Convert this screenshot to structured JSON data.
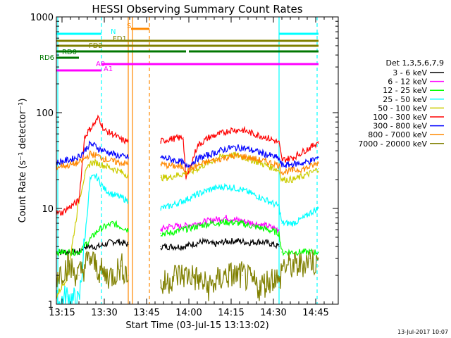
{
  "chart_data": {
    "type": "line",
    "title": "HESSI Observing Summary Count Rates",
    "xlabel": "Start Time (03-Jul-15 13:13:02)",
    "ylabel": "Count Rate (s⁻¹ detector⁻¹)",
    "x_unit": "minutes after 13:13:02",
    "xlim": [
      0,
      100
    ],
    "ylim": [
      1,
      1000
    ],
    "yscale": "log",
    "grid": false,
    "legend_position": "right",
    "legend_title": "Det 1,3,5,6,7,9",
    "x_ticks": [
      {
        "x": 2,
        "label": "13:15"
      },
      {
        "x": 17,
        "label": "13:30"
      },
      {
        "x": 32,
        "label": "13:45"
      },
      {
        "x": 47,
        "label": "14:00"
      },
      {
        "x": 62,
        "label": "14:15"
      },
      {
        "x": 77,
        "label": "14:30"
      },
      {
        "x": 92,
        "label": "14:45"
      }
    ],
    "y_ticks": [
      {
        "y": 1,
        "label": "1"
      },
      {
        "y": 10,
        "label": "10"
      },
      {
        "y": 100,
        "label": "100"
      },
      {
        "y": 1000,
        "label": "1000"
      }
    ],
    "series": [
      {
        "name": "3 - 6 keV",
        "color": "#000000",
        "x": [
          0,
          8,
          10,
          15,
          20,
          22,
          25.5,
          37,
          40,
          45,
          48,
          52,
          56,
          60,
          64,
          68,
          72,
          76,
          79
        ],
        "y": [
          3.5,
          3.5,
          4,
          4,
          4.5,
          4.5,
          4.2,
          4,
          4,
          4,
          4.2,
          4.5,
          4.2,
          4.5,
          4.6,
          4.4,
          4.5,
          4.3,
          4
        ]
      },
      {
        "name": "6 - 12 keV",
        "color": "#ff00ff",
        "x": [
          37,
          40,
          45,
          50,
          55,
          60,
          65,
          70,
          75,
          79
        ],
        "y": [
          6,
          6.5,
          6.5,
          7,
          7.5,
          8,
          7.5,
          7,
          6.5,
          6
        ]
      },
      {
        "name": "12 - 25 keV",
        "color": "#00ff00",
        "x": [
          0,
          8,
          15,
          20,
          25.5,
          37,
          40,
          45,
          50,
          55,
          60,
          65,
          70,
          75,
          79,
          80,
          85,
          90,
          93
        ],
        "y": [
          3.5,
          3.5,
          6,
          7,
          6,
          5.5,
          5.5,
          6,
          6.5,
          7,
          7.2,
          7,
          6.5,
          6,
          5.5,
          3.5,
          3.5,
          3.5,
          3.5
        ]
      },
      {
        "name": "25 - 50 keV",
        "color": "#00ffff",
        "x": [
          0,
          4,
          8,
          12,
          14,
          17,
          20,
          23,
          25.5,
          37,
          40,
          45,
          50,
          55,
          60,
          65,
          70,
          75,
          79,
          80,
          84,
          88,
          90,
          93
        ],
        "y": [
          1,
          1.2,
          1,
          20,
          22,
          16,
          14,
          13,
          12,
          10,
          10.5,
          12,
          14,
          16,
          17,
          16,
          14,
          12,
          10.5,
          7,
          7,
          8,
          9,
          10
        ]
      },
      {
        "name": "50 - 100 keV",
        "color": "#cccc00",
        "x": [
          0,
          4,
          6,
          8,
          10,
          12,
          14,
          17,
          20,
          23,
          25.5,
          37,
          40,
          42,
          48,
          52,
          56,
          60,
          64,
          68,
          72,
          76,
          79,
          80,
          84,
          88,
          91,
          93
        ],
        "y": [
          1.2,
          2,
          5,
          12,
          22,
          30,
          30,
          28,
          26,
          24,
          22,
          21,
          21,
          22,
          24,
          28,
          32,
          36,
          36,
          33,
          30,
          27,
          25,
          20,
          20,
          22,
          24,
          26
        ]
      },
      {
        "name": "100 - 300 keV",
        "color": "#ff0000",
        "x": [
          0,
          2,
          4,
          6,
          8,
          10,
          11,
          12,
          14,
          15,
          17,
          20,
          23,
          25.5,
          37,
          40,
          45,
          46,
          50,
          54,
          58,
          62,
          66,
          70,
          74,
          78,
          79,
          80,
          84,
          88,
          91,
          93
        ],
        "y": [
          9,
          9,
          10,
          11,
          12,
          55,
          62,
          68,
          80,
          90,
          65,
          60,
          52,
          50,
          50,
          53,
          55,
          20,
          45,
          55,
          60,
          66,
          66,
          60,
          56,
          50,
          48,
          32,
          34,
          40,
          45,
          50
        ]
      },
      {
        "name": "300 - 800 keV",
        "color": "#0000ff",
        "x": [
          0,
          2,
          4,
          6,
          8,
          10,
          11,
          12,
          14,
          15,
          17,
          20,
          23,
          25.5,
          37,
          40,
          45,
          46,
          50,
          54,
          58,
          62,
          66,
          70,
          74,
          78,
          79,
          80,
          84,
          88,
          91,
          93
        ],
        "y": [
          30,
          31,
          32,
          33,
          35,
          40,
          44,
          47,
          45,
          42,
          40,
          37,
          35,
          34,
          34,
          33,
          30,
          27,
          33,
          36,
          40,
          43,
          43,
          40,
          37,
          34,
          33,
          28,
          29,
          30,
          32,
          34
        ]
      },
      {
        "name": "800 - 7000 keV",
        "color": "#ff8800",
        "x": [
          0,
          2,
          4,
          6,
          8,
          10,
          12,
          14,
          15,
          17,
          20,
          23,
          25.5,
          37,
          40,
          45,
          46,
          50,
          54,
          58,
          62,
          66,
          70,
          74,
          78,
          79,
          80,
          84,
          88,
          91,
          93
        ],
        "y": [
          27,
          28,
          28,
          29,
          30,
          33,
          37,
          36,
          35,
          33,
          31,
          30,
          29,
          29,
          28,
          27,
          24,
          28,
          31,
          33,
          35,
          35,
          33,
          31,
          29,
          28,
          24,
          25,
          26,
          28,
          30
        ]
      },
      {
        "name": "7000 - 20000 keV",
        "color": "#808000",
        "x": [
          0,
          4,
          8,
          10,
          12,
          14,
          17,
          20,
          23,
          25.5,
          37,
          42,
          48,
          54,
          60,
          66,
          72,
          78,
          79,
          80,
          86,
          90,
          93
        ],
        "y": [
          2,
          2.5,
          2,
          2.5,
          3,
          2.5,
          2,
          2,
          2.5,
          2,
          1.5,
          2,
          2,
          1.5,
          2,
          2,
          1.5,
          2,
          1.5,
          2.5,
          2.5,
          3,
          2.5
        ]
      }
    ],
    "annotations": [
      {
        "label": "S",
        "color": "#ff8800",
        "segments": [
          [
            26.5,
            33
          ]
        ]
      },
      {
        "label": "N",
        "color": "#00ffff",
        "segments": [
          [
            0,
            16
          ],
          [
            79,
            93
          ]
        ]
      },
      {
        "label": "FD1",
        "color": "#808000",
        "segments": [
          [
            0,
            93
          ]
        ]
      },
      {
        "label": "FD2",
        "color": "#808000",
        "segments": [
          [
            0,
            93
          ]
        ]
      },
      {
        "label": "RD0",
        "color": "#007700",
        "segments": [
          [
            0,
            8
          ],
          [
            8,
            46
          ],
          [
            47,
            93
          ]
        ]
      },
      {
        "label": "RD6",
        "color": "#007700",
        "segments": [
          [
            0,
            8
          ]
        ]
      },
      {
        "label": "A0",
        "color": "#ff00ff",
        "segments": [
          [
            16,
            93
          ]
        ]
      },
      {
        "label": "A1",
        "color": "#ff00ff",
        "segments": [
          [
            0,
            16
          ]
        ]
      }
    ]
  },
  "timestamp": "13-Jul-2017 10:07"
}
